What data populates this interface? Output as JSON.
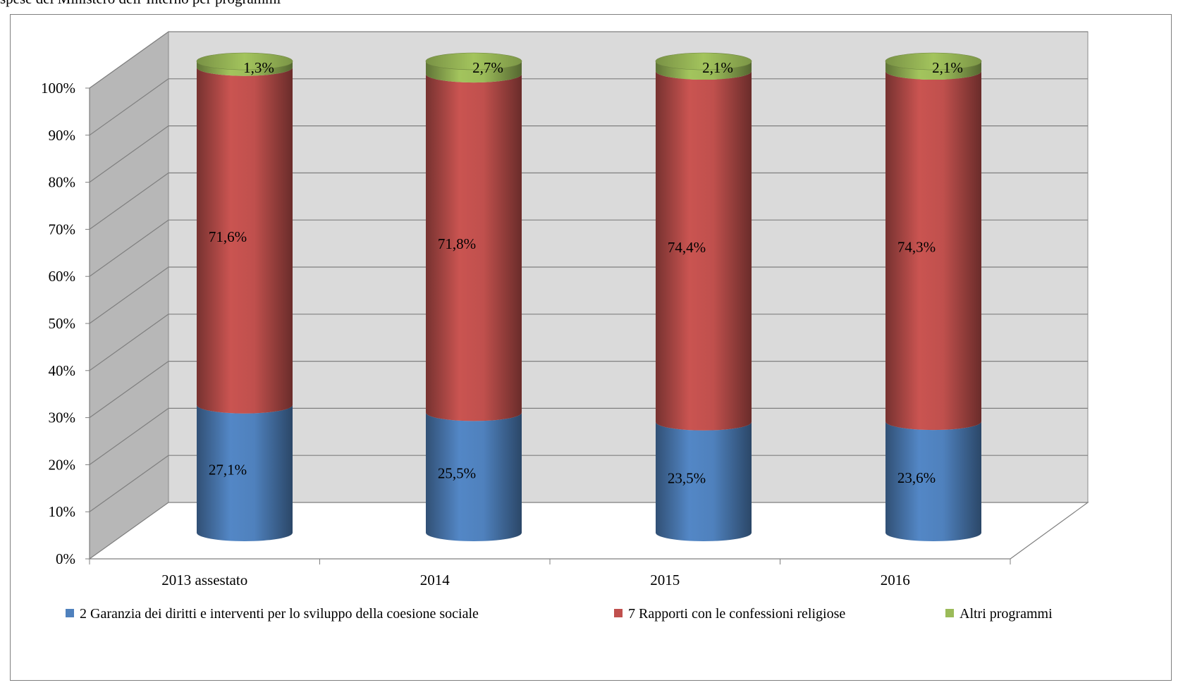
{
  "header_fragment": "spese del Ministero dell’Interno per programmi",
  "chart_data": {
    "type": "bar",
    "stacked": true,
    "three_d": true,
    "categories": [
      "2013 assestato",
      "2014",
      "2015",
      "2016"
    ],
    "series": [
      {
        "name": "2 Garanzia dei diritti e interventi per lo sviluppo della coesione sociale",
        "values": [
          27.1,
          25.5,
          23.5,
          23.6
        ],
        "labels": [
          "27,1%",
          "25,5%",
          "23,5%",
          "23,6%"
        ],
        "color": "#4f81bd"
      },
      {
        "name": "7 Rapporti con le confessioni religiose",
        "values": [
          71.6,
          71.8,
          74.4,
          74.3
        ],
        "labels": [
          "71,6%",
          "71,8%",
          "74,4%",
          "74,3%"
        ],
        "color": "#c0504d"
      },
      {
        "name": "Altri programmi",
        "values": [
          1.3,
          2.7,
          2.1,
          2.1
        ],
        "labels": [
          "1,3%",
          "2,7%",
          "2,1%",
          "2,1%"
        ],
        "color": "#9bbb59"
      }
    ],
    "yticks": [
      "0%",
      "10%",
      "20%",
      "30%",
      "40%",
      "50%",
      "60%",
      "70%",
      "80%",
      "90%",
      "100%"
    ],
    "ylim": [
      0,
      100
    ],
    "grid": true,
    "legend": "bottom"
  }
}
